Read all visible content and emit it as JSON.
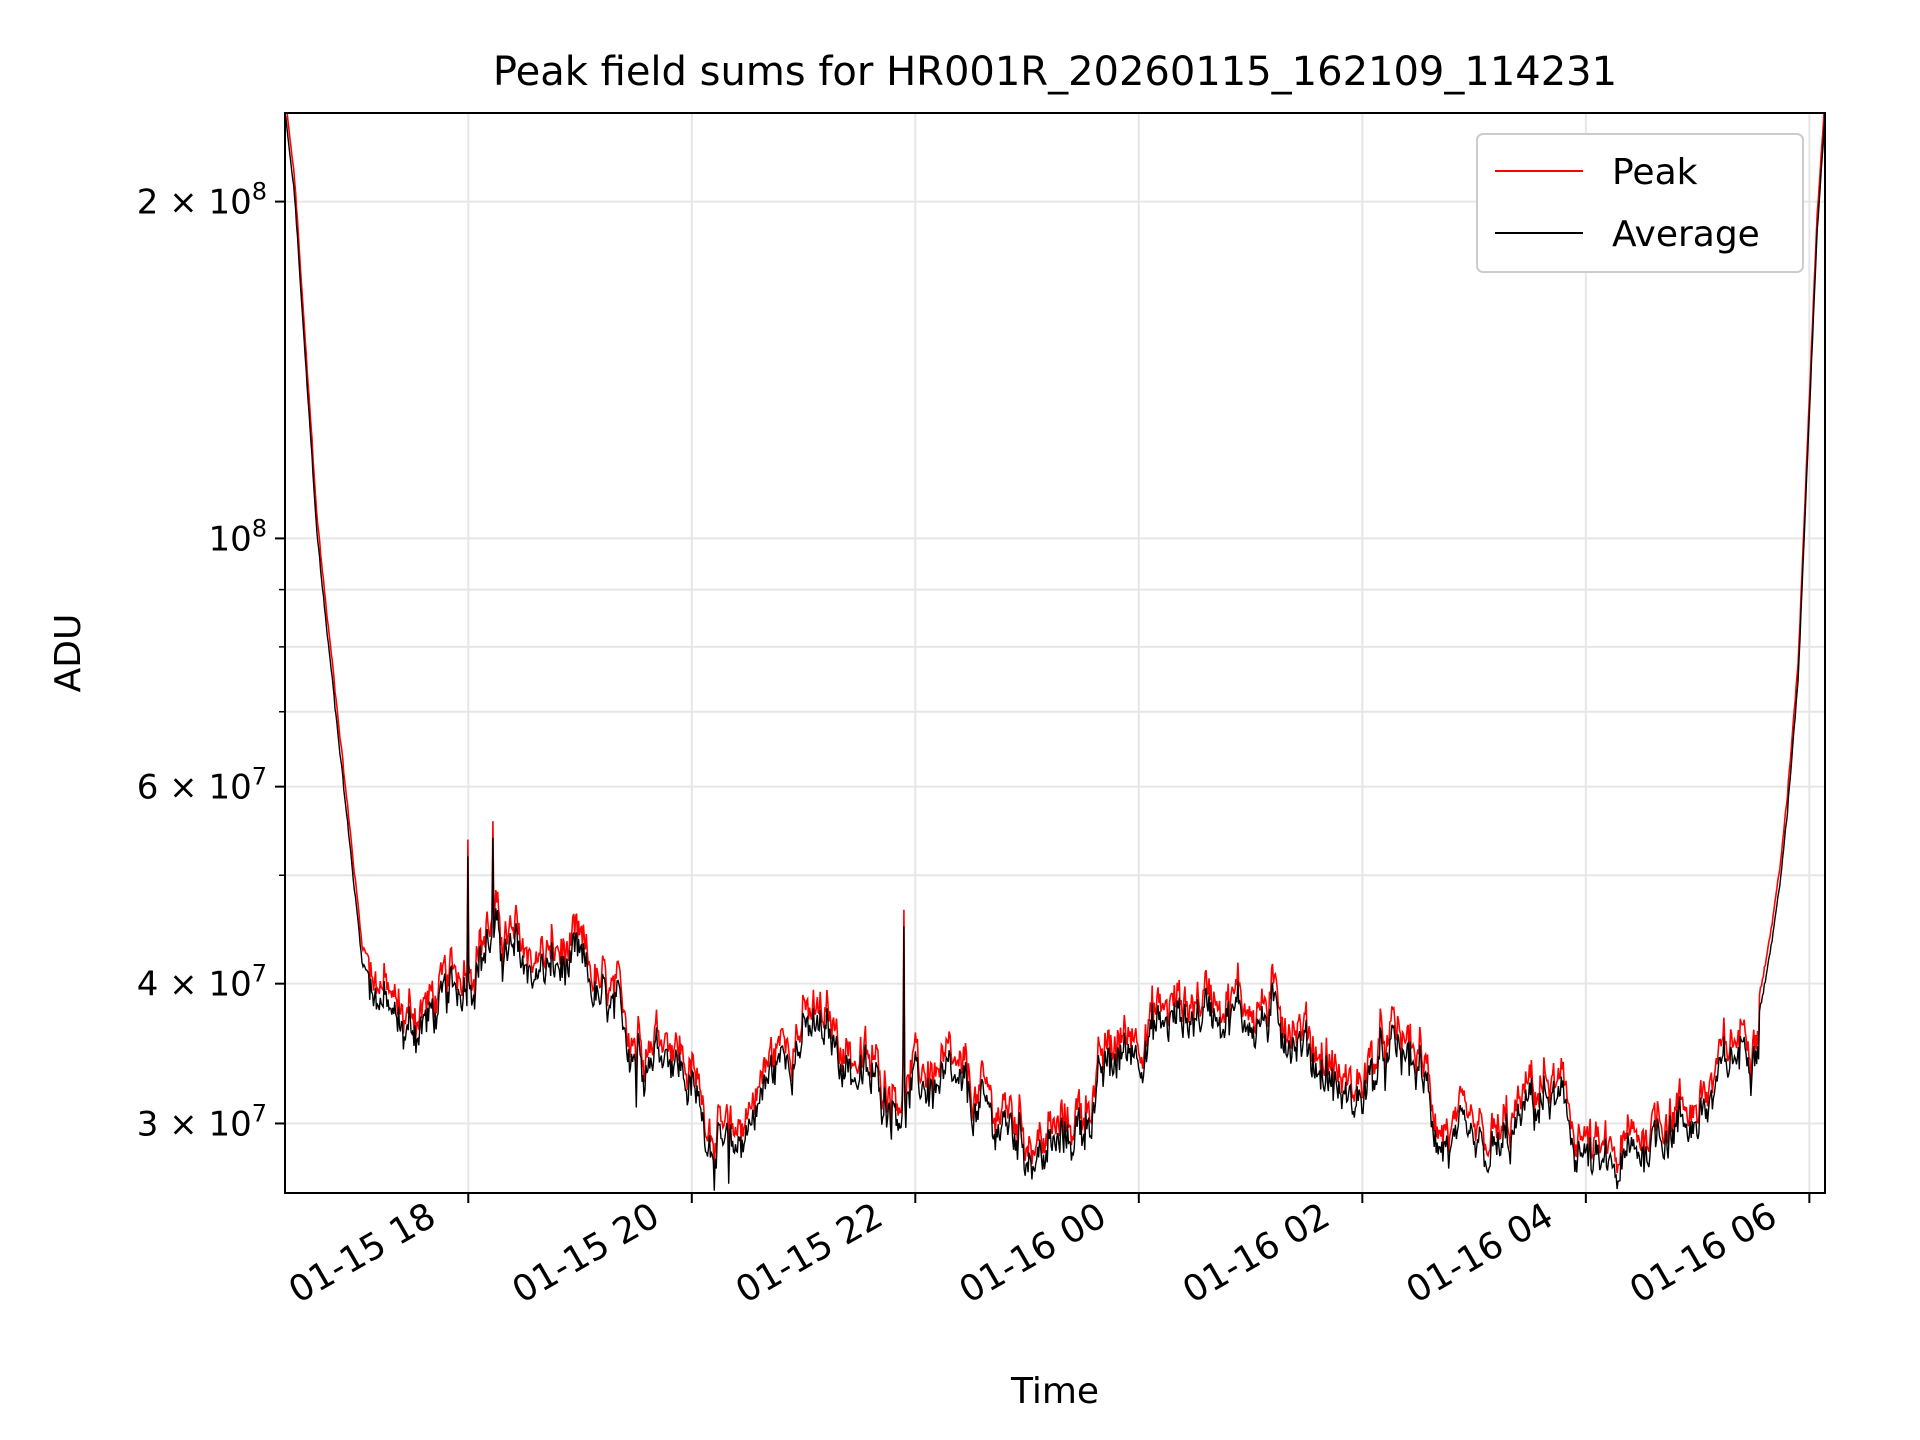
{
  "chart_data": {
    "type": "line",
    "title": "Peak field sums for HR001R_20260115_162109_114231",
    "xlabel": "Time",
    "ylabel": "ADU",
    "yscale": "log",
    "ylim": [
      26000000,
      240000000
    ],
    "xlim_hours": [
      16.36,
      30.14
    ],
    "grid": true,
    "legend_location": "upper right",
    "x_tick_hours": [
      18,
      20,
      22,
      24,
      26,
      28,
      30
    ],
    "x_tick_labels": [
      "01-15 18",
      "01-15 20",
      "01-15 22",
      "01-16 00",
      "01-16 02",
      "01-16 04",
      "01-16 06"
    ],
    "y_ticks": [
      {
        "value": 30000000,
        "mantissa": "3",
        "base": "10",
        "exp": "7"
      },
      {
        "value": 40000000,
        "mantissa": "4",
        "base": "10",
        "exp": "7"
      },
      {
        "value": 60000000,
        "mantissa": "6",
        "base": "10",
        "exp": "7"
      },
      {
        "value": 100000000,
        "mantissa": "",
        "base": "10",
        "exp": "8"
      },
      {
        "value": 200000000,
        "mantissa": "2",
        "base": "10",
        "exp": "8"
      }
    ],
    "y_minor_ticks": [
      50000000,
      70000000,
      80000000,
      90000000
    ],
    "series": [
      {
        "name": "Peak",
        "color": "#ff0000",
        "offset_ratio": 1.035,
        "noise_ratio": 0.035
      },
      {
        "name": "Average",
        "color": "#000000",
        "offset_ratio": 1.0,
        "noise_ratio": 0.035
      }
    ],
    "baseline_points": [
      [
        16.36,
        240000000
      ],
      [
        16.45,
        200000000
      ],
      [
        16.55,
        140000000
      ],
      [
        16.65,
        100000000
      ],
      [
        16.75,
        80000000
      ],
      [
        16.85,
        65000000
      ],
      [
        16.95,
        52000000
      ],
      [
        17.05,
        42000000
      ],
      [
        17.2,
        39000000
      ],
      [
        17.4,
        36000000
      ],
      [
        17.6,
        37000000
      ],
      [
        17.8,
        38000000
      ],
      [
        18.0,
        41000000
      ],
      [
        18.2,
        44000000
      ],
      [
        18.4,
        42000000
      ],
      [
        18.6,
        41000000
      ],
      [
        18.8,
        41000000
      ],
      [
        19.0,
        41000000
      ],
      [
        19.2,
        38000000
      ],
      [
        19.4,
        36000000
      ],
      [
        19.6,
        35000000
      ],
      [
        19.8,
        35500000
      ],
      [
        20.0,
        32000000
      ],
      [
        20.2,
        29000000
      ],
      [
        20.35,
        27500000
      ],
      [
        20.5,
        30000000
      ],
      [
        20.7,
        33000000
      ],
      [
        20.9,
        35500000
      ],
      [
        21.1,
        36000000
      ],
      [
        21.3,
        35000000
      ],
      [
        21.5,
        33000000
      ],
      [
        21.7,
        32000000
      ],
      [
        21.9,
        31500000
      ],
      [
        22.1,
        32500000
      ],
      [
        22.3,
        32000000
      ],
      [
        22.5,
        31000000
      ],
      [
        22.7,
        30000000
      ],
      [
        22.9,
        29500000
      ],
      [
        23.1,
        28000000
      ],
      [
        23.3,
        28500000
      ],
      [
        23.5,
        30000000
      ],
      [
        23.7,
        33000000
      ],
      [
        23.9,
        35000000
      ],
      [
        24.1,
        36000000
      ],
      [
        24.3,
        37000000
      ],
      [
        24.5,
        37500000
      ],
      [
        24.7,
        38500000
      ],
      [
        24.9,
        37500000
      ],
      [
        25.1,
        37000000
      ],
      [
        25.3,
        37000000
      ],
      [
        25.5,
        35000000
      ],
      [
        25.7,
        33000000
      ],
      [
        25.9,
        31000000
      ],
      [
        26.1,
        33000000
      ],
      [
        26.3,
        34500000
      ],
      [
        26.5,
        33500000
      ],
      [
        26.7,
        29000000
      ],
      [
        26.9,
        28000000
      ],
      [
        27.1,
        27500000
      ],
      [
        27.3,
        28500000
      ],
      [
        27.5,
        31000000
      ],
      [
        27.7,
        31500000
      ],
      [
        27.9,
        29000000
      ],
      [
        28.1,
        27000000
      ],
      [
        28.3,
        27000000
      ],
      [
        28.5,
        28500000
      ],
      [
        28.7,
        30000000
      ],
      [
        28.9,
        30000000
      ],
      [
        29.1,
        31000000
      ],
      [
        29.3,
        34000000
      ],
      [
        29.5,
        36000000
      ],
      [
        29.6,
        40000000
      ],
      [
        29.7,
        46000000
      ],
      [
        29.8,
        56000000
      ],
      [
        29.9,
        75000000
      ],
      [
        30.0,
        130000000
      ],
      [
        30.07,
        190000000
      ],
      [
        30.14,
        240000000
      ]
    ],
    "spikes": [
      [
        18.0,
        52000000
      ],
      [
        18.22,
        54000000
      ],
      [
        21.9,
        45000000
      ],
      [
        19.5,
        31000000
      ],
      [
        20.33,
        26500000
      ]
    ]
  }
}
